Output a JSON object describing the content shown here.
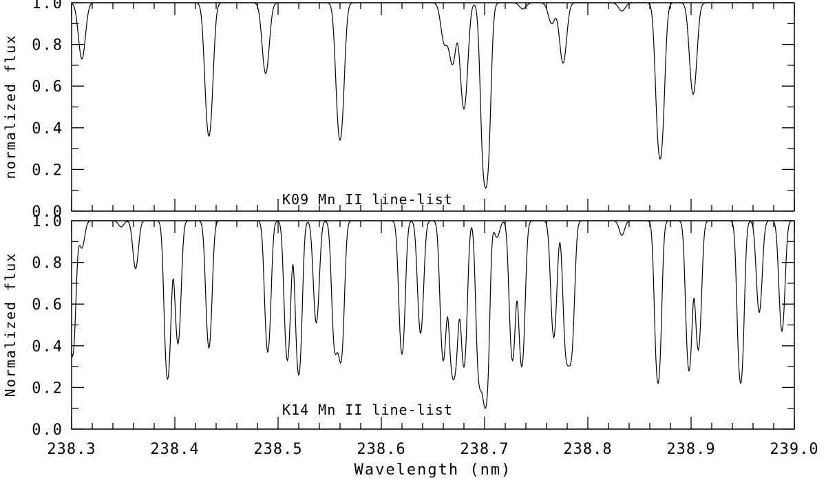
{
  "chart_data": [
    {
      "type": "line",
      "panel": "top",
      "annotation": "K09 Mn II line-list",
      "ylabel": "normalized flux",
      "xlim": [
        238.3,
        239.0
      ],
      "ylim": [
        0.0,
        1.0
      ],
      "yticks": [
        "0.0",
        "0.2",
        "0.4",
        "0.6",
        "0.8",
        "1.0"
      ],
      "grid": false,
      "continuum": 1.0,
      "lines_min_flux": [
        {
          "x": 238.31,
          "y": 0.73
        },
        {
          "x": 238.433,
          "y": 0.36
        },
        {
          "x": 238.488,
          "y": 0.66
        },
        {
          "x": 238.56,
          "y": 0.34
        },
        {
          "x": 238.661,
          "y": 0.81
        },
        {
          "x": 238.669,
          "y": 0.71
        },
        {
          "x": 238.68,
          "y": 0.49
        },
        {
          "x": 238.701,
          "y": 0.11
        },
        {
          "x": 238.737,
          "y": 0.97
        },
        {
          "x": 238.765,
          "y": 0.9
        },
        {
          "x": 238.776,
          "y": 0.71
        },
        {
          "x": 238.833,
          "y": 0.96
        },
        {
          "x": 238.87,
          "y": 0.25
        },
        {
          "x": 238.902,
          "y": 0.56
        }
      ]
    },
    {
      "type": "line",
      "panel": "bottom",
      "annotation": "K14 Mn II line-list",
      "ylabel": "Normalized flux",
      "xlabel": "Wavelength (nm)",
      "xlim": [
        238.3,
        239.0
      ],
      "ylim": [
        0.0,
        1.0
      ],
      "xticks": [
        "238.3",
        "238.4",
        "238.5",
        "238.6",
        "238.7",
        "238.8",
        "238.9",
        "239.0"
      ],
      "yticks": [
        "0.0",
        "0.2",
        "0.4",
        "0.6",
        "0.8",
        "1.0"
      ],
      "grid": false,
      "continuum": 1.0,
      "lines_min_flux": [
        {
          "x": 238.301,
          "y": 0.35
        },
        {
          "x": 238.31,
          "y": 0.87
        },
        {
          "x": 238.348,
          "y": 0.97
        },
        {
          "x": 238.362,
          "y": 0.77
        },
        {
          "x": 238.393,
          "y": 0.24
        },
        {
          "x": 238.403,
          "y": 0.41
        },
        {
          "x": 238.433,
          "y": 0.39
        },
        {
          "x": 238.49,
          "y": 0.37
        },
        {
          "x": 238.509,
          "y": 0.33
        },
        {
          "x": 238.52,
          "y": 0.26
        },
        {
          "x": 238.537,
          "y": 0.51
        },
        {
          "x": 238.555,
          "y": 0.39
        },
        {
          "x": 238.561,
          "y": 0.34
        },
        {
          "x": 238.62,
          "y": 0.36
        },
        {
          "x": 238.638,
          "y": 0.46
        },
        {
          "x": 238.66,
          "y": 0.33
        },
        {
          "x": 238.668,
          "y": 0.37
        },
        {
          "x": 238.672,
          "y": 0.38
        },
        {
          "x": 238.68,
          "y": 0.3
        },
        {
          "x": 238.695,
          "y": 0.23
        },
        {
          "x": 238.701,
          "y": 0.11
        },
        {
          "x": 238.712,
          "y": 0.92
        },
        {
          "x": 238.727,
          "y": 0.33
        },
        {
          "x": 238.736,
          "y": 0.3
        },
        {
          "x": 238.767,
          "y": 0.44
        },
        {
          "x": 238.779,
          "y": 0.38
        },
        {
          "x": 238.784,
          "y": 0.38
        },
        {
          "x": 238.833,
          "y": 0.93
        },
        {
          "x": 238.868,
          "y": 0.22
        },
        {
          "x": 238.898,
          "y": 0.28
        },
        {
          "x": 238.907,
          "y": 0.38
        },
        {
          "x": 238.948,
          "y": 0.22
        },
        {
          "x": 238.966,
          "y": 0.56
        },
        {
          "x": 238.988,
          "y": 0.47
        }
      ]
    }
  ]
}
